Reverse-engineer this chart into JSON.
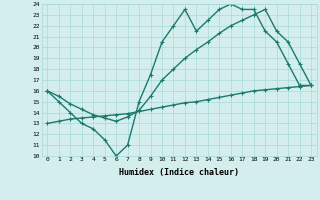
{
  "line1_x": [
    0,
    1,
    2,
    3,
    4,
    5,
    6,
    7,
    8,
    9,
    10,
    11,
    12,
    13,
    14,
    15,
    16,
    17,
    18,
    19,
    20,
    21,
    22,
    23
  ],
  "line1_y": [
    16,
    15,
    14,
    13,
    12.5,
    11.5,
    10,
    11,
    15,
    17.5,
    20.5,
    22,
    23.5,
    21.5,
    22.5,
    23.5,
    24,
    23.5,
    23.5,
    21.5,
    20.5,
    18.5,
    16.5,
    16.5
  ],
  "line2_x": [
    0,
    1,
    2,
    3,
    4,
    5,
    6,
    7,
    8,
    9,
    10,
    11,
    12,
    13,
    14,
    15,
    16,
    17,
    18,
    19,
    20,
    21,
    22,
    23
  ],
  "line2_y": [
    16,
    15.5,
    14.8,
    14.3,
    13.8,
    13.5,
    13.2,
    13.6,
    14.2,
    15.5,
    17.0,
    18.0,
    19.0,
    19.8,
    20.5,
    21.3,
    22.0,
    22.5,
    23.0,
    23.5,
    21.5,
    20.5,
    18.5,
    16.5
  ],
  "line3_x": [
    0,
    1,
    2,
    3,
    4,
    5,
    6,
    7,
    8,
    9,
    10,
    11,
    12,
    13,
    14,
    15,
    16,
    17,
    18,
    19,
    20,
    21,
    22,
    23
  ],
  "line3_y": [
    13.0,
    13.2,
    13.4,
    13.5,
    13.6,
    13.7,
    13.8,
    13.9,
    14.1,
    14.3,
    14.5,
    14.7,
    14.9,
    15.0,
    15.2,
    15.4,
    15.6,
    15.8,
    16.0,
    16.1,
    16.2,
    16.3,
    16.4,
    16.5
  ],
  "color": "#1a7a6e",
  "bg_color": "#d4eeee",
  "grid_color": "#a8d8d8",
  "xlabel": "Humidex (Indice chaleur)",
  "ylim": [
    10,
    24
  ],
  "xlim": [
    -0.5,
    23.5
  ],
  "yticks": [
    10,
    11,
    12,
    13,
    14,
    15,
    16,
    17,
    18,
    19,
    20,
    21,
    22,
    23,
    24
  ],
  "xticks": [
    0,
    1,
    2,
    3,
    4,
    5,
    6,
    7,
    8,
    9,
    10,
    11,
    12,
    13,
    14,
    15,
    16,
    17,
    18,
    19,
    20,
    21,
    22,
    23
  ],
  "marker": "+",
  "linewidth": 1.0,
  "markersize": 3.5,
  "tick_fontsize": 4.5,
  "xlabel_fontsize": 6.0
}
